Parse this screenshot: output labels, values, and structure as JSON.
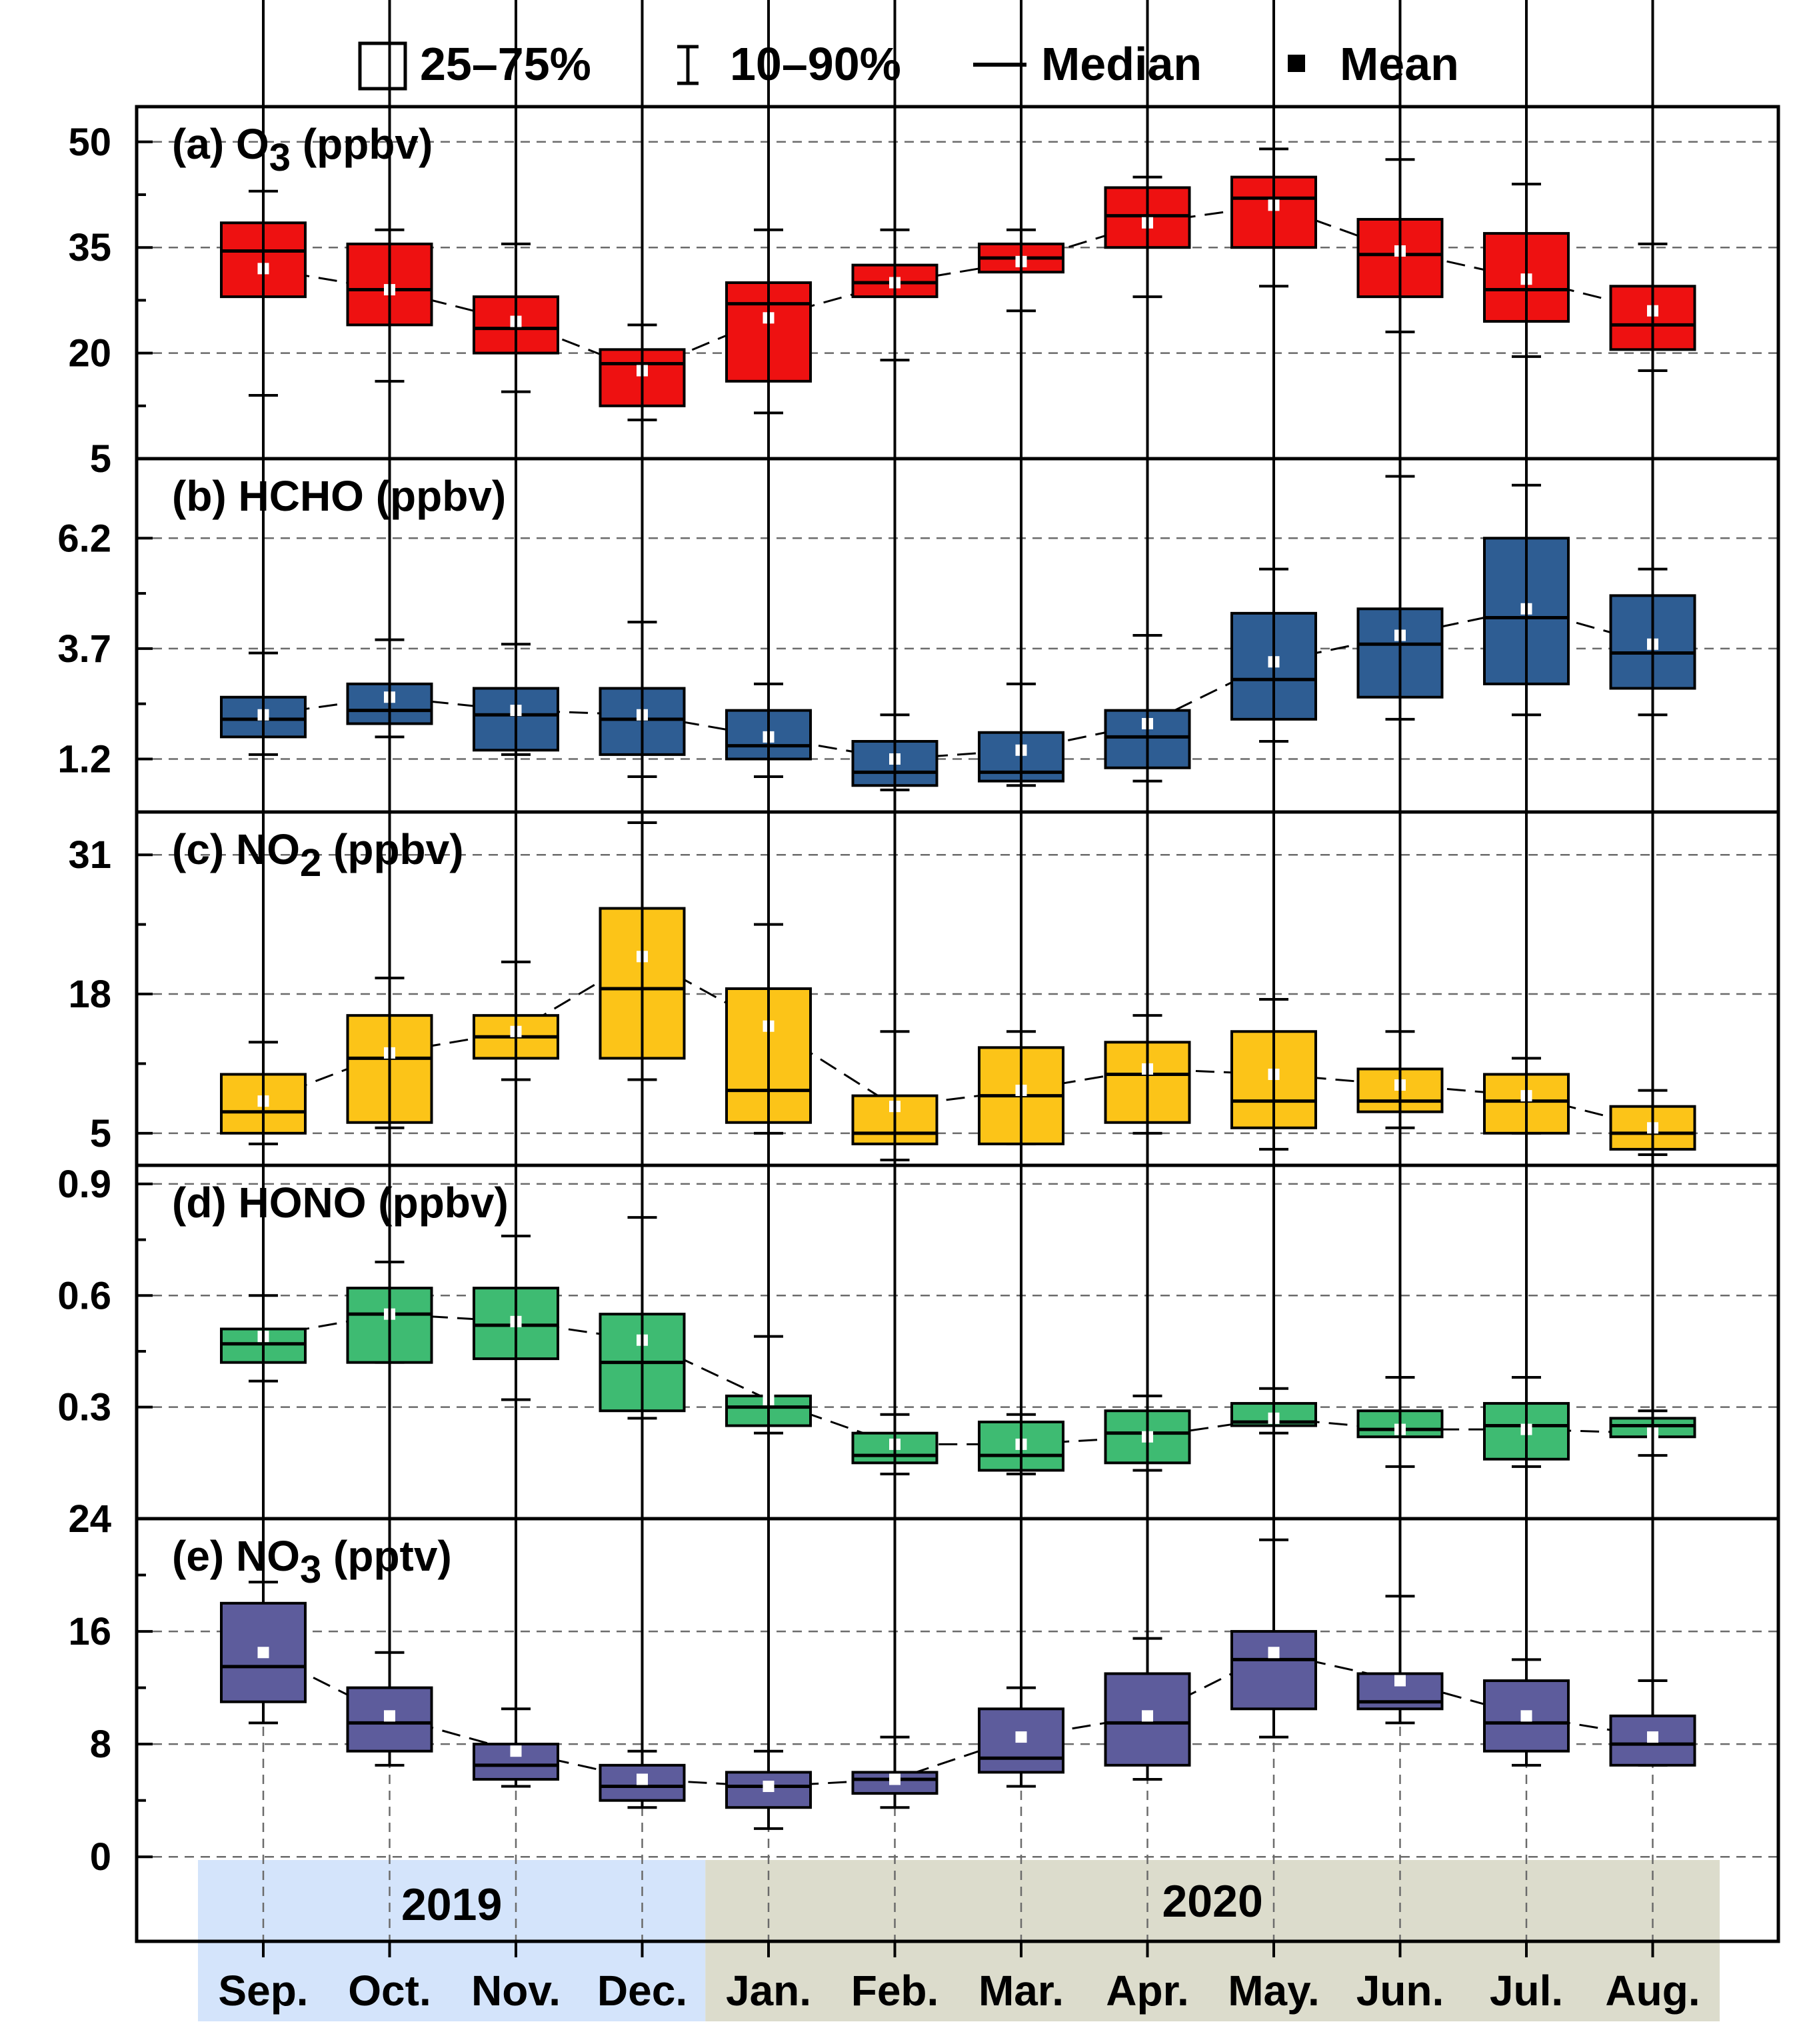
{
  "legend": {
    "box_label": "25–75%",
    "whisker_label": "10–90%",
    "median_label": "Median",
    "mean_label": "Mean"
  },
  "years": [
    {
      "label": "2019",
      "from": "Sep.",
      "to": "Dec.",
      "color": "#d4e4fb"
    },
    {
      "label": "2020",
      "from": "Jan.",
      "to": "Aug.",
      "color": "#dcdccc"
    }
  ],
  "chart_data": {
    "type": "box",
    "categories": [
      "Sep.",
      "Oct.",
      "Nov.",
      "Dec.",
      "Jan.",
      "Feb.",
      "Mar.",
      "Apr.",
      "May.",
      "Jun.",
      "Jul.",
      "Aug."
    ],
    "grid": true,
    "panels": [
      {
        "title_prefix": "(a) O",
        "title_sub": "3",
        "title_suffix": " (ppbv)",
        "color": "#ee1111",
        "ylim": [
          5,
          55
        ],
        "yticks": [
          "50",
          "35",
          "20",
          "5"
        ],
        "ytick_values": [
          50,
          35,
          20,
          5
        ],
        "p10": [
          14,
          16,
          14.5,
          10.5,
          11.5,
          19,
          26,
          28,
          29.5,
          23,
          19.5,
          17.5
        ],
        "q1": [
          28,
          24,
          20,
          12.5,
          16,
          28,
          31.5,
          35,
          35,
          28,
          24.5,
          20.5
        ],
        "median": [
          34.5,
          29,
          23.5,
          18.5,
          27,
          30,
          33.5,
          39.5,
          42,
          34,
          29,
          24
        ],
        "q3": [
          38.5,
          35.5,
          28,
          20.5,
          30,
          32.5,
          35.5,
          43.5,
          45,
          39,
          37,
          29.5
        ],
        "p90": [
          43,
          37.5,
          35.5,
          24,
          37.5,
          37.5,
          37.5,
          45,
          49,
          47.5,
          44,
          35.5
        ],
        "mean": [
          32,
          29,
          24.5,
          17.5,
          25,
          30,
          33,
          38.5,
          41,
          34.5,
          30.5,
          26
        ]
      },
      {
        "title_prefix": "(b) HCHO (ppbv)",
        "title_sub": "",
        "title_suffix": "",
        "color": "#2e5d93",
        "ylim": [
          0,
          8
        ],
        "yticks": [
          "6.2",
          "3.7",
          "1.2"
        ],
        "ytick_values": [
          6.2,
          3.7,
          1.2
        ],
        "p10": [
          1.3,
          1.7,
          1.3,
          0.8,
          0.8,
          0.5,
          0.6,
          0.7,
          1.6,
          2.1,
          2.2,
          2.2
        ],
        "q1": [
          1.7,
          2.0,
          1.4,
          1.3,
          1.2,
          0.6,
          0.7,
          1.0,
          2.1,
          2.6,
          2.9,
          2.8
        ],
        "median": [
          2.1,
          2.3,
          2.2,
          2.1,
          1.5,
          0.9,
          0.9,
          1.7,
          3.0,
          3.8,
          4.4,
          3.6
        ],
        "q3": [
          2.6,
          2.9,
          2.8,
          2.8,
          2.3,
          1.6,
          1.8,
          2.3,
          4.5,
          4.6,
          6.2,
          4.9
        ],
        "p90": [
          3.6,
          3.9,
          3.8,
          4.3,
          2.9,
          2.2,
          2.9,
          4.0,
          5.5,
          7.6,
          7.4,
          5.5
        ],
        "mean": [
          2.2,
          2.6,
          2.3,
          2.2,
          1.7,
          1.2,
          1.4,
          2.0,
          3.4,
          4.0,
          4.6,
          3.8
        ]
      },
      {
        "title_prefix": "(c) NO",
        "title_sub": "2",
        "title_suffix": " (ppbv)",
        "color": "#fcc418",
        "ylim": [
          2,
          35
        ],
        "yticks": [
          "31",
          "18",
          "5"
        ],
        "ytick_values": [
          31,
          18,
          5
        ],
        "p10": [
          4,
          5.5,
          10,
          10,
          5,
          2.5,
          4,
          5,
          3.5,
          5.5,
          5,
          3
        ],
        "q1": [
          5,
          6,
          12,
          12,
          6,
          4,
          4,
          6,
          5.5,
          7,
          5,
          3.5
        ],
        "median": [
          7,
          12,
          14,
          18.5,
          9,
          5,
          8.5,
          10.5,
          8,
          8,
          8,
          5
        ],
        "q3": [
          10.5,
          16,
          16,
          26,
          18.5,
          8.5,
          13,
          13.5,
          14.5,
          11,
          10.5,
          7.5
        ],
        "p90": [
          13.5,
          19.5,
          21,
          34,
          24.5,
          14.5,
          14.5,
          16,
          17.5,
          14.5,
          12,
          9
        ],
        "mean": [
          8,
          12.5,
          14.5,
          21.5,
          15,
          7.5,
          9,
          11,
          10.5,
          9.5,
          8.5,
          5.5
        ]
      },
      {
        "title_prefix": "(d) HONO (ppbv)",
        "title_sub": "",
        "title_suffix": "",
        "color": "#3ebb72",
        "ylim": [
          0,
          0.95
        ],
        "yticks": [
          "0.9",
          "0.6",
          "0.3"
        ],
        "ytick_values": [
          0.9,
          0.6,
          0.3
        ],
        "p10": [
          0.37,
          0.42,
          0.32,
          0.27,
          0.23,
          0.12,
          0.12,
          0.13,
          0.23,
          0.14,
          0.14,
          0.17
        ],
        "q1": [
          0.42,
          0.42,
          0.43,
          0.29,
          0.25,
          0.15,
          0.13,
          0.15,
          0.25,
          0.22,
          0.16,
          0.22
        ],
        "median": [
          0.47,
          0.55,
          0.52,
          0.42,
          0.3,
          0.17,
          0.17,
          0.23,
          0.26,
          0.24,
          0.25,
          0.25
        ],
        "q3": [
          0.51,
          0.62,
          0.62,
          0.55,
          0.33,
          0.23,
          0.26,
          0.29,
          0.31,
          0.29,
          0.31,
          0.27
        ],
        "p90": [
          0.6,
          0.69,
          0.76,
          0.81,
          0.49,
          0.28,
          0.28,
          0.33,
          0.35,
          0.38,
          0.38,
          0.29
        ],
        "mean": [
          0.49,
          0.55,
          0.53,
          0.48,
          0.32,
          0.2,
          0.2,
          0.22,
          0.27,
          0.24,
          0.24,
          0.23
        ]
      },
      {
        "title_prefix": "(e) NO",
        "title_sub": "3",
        "title_suffix": " (pptv)",
        "color": "#5d5c9c",
        "ylim": [
          -6,
          24
        ],
        "yticks": [
          "24",
          "16",
          "8",
          "0"
        ],
        "ytick_values": [
          24,
          16,
          8,
          0
        ],
        "p10": [
          9.5,
          6.5,
          5,
          3.5,
          2,
          3.5,
          5,
          5.5,
          8.5,
          9.5,
          6.5,
          6.5
        ],
        "q1": [
          11,
          7.5,
          5.5,
          4,
          3.5,
          4.5,
          6,
          6.5,
          10.5,
          10.5,
          7.5,
          6.5
        ],
        "median": [
          13.5,
          9.5,
          6.5,
          5,
          5,
          5.5,
          7,
          9.5,
          14,
          11,
          9.5,
          8
        ],
        "q3": [
          18,
          12,
          8,
          6.5,
          6,
          6,
          10.5,
          13,
          16,
          13,
          12.5,
          10
        ],
        "p90": [
          19.5,
          14.5,
          10.5,
          7.5,
          7.5,
          8.5,
          12,
          15.5,
          22.5,
          18.5,
          14,
          12.5
        ],
        "mean": [
          14.5,
          10,
          7.5,
          5.5,
          5,
          5.5,
          8.5,
          10,
          14.5,
          12.5,
          10,
          8.5
        ]
      }
    ]
  }
}
